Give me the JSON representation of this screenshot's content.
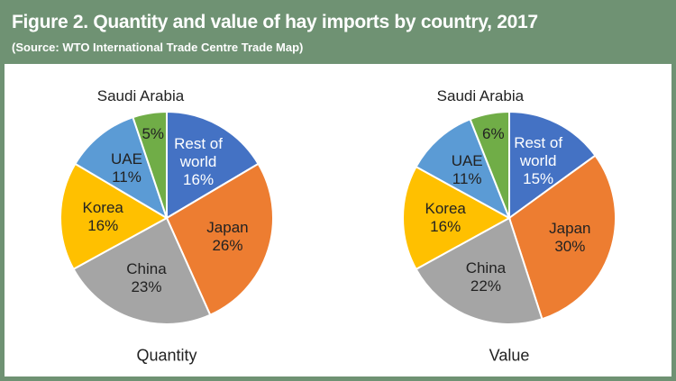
{
  "title": "Figure 2. Quantity and value of hay imports by country, 2017",
  "subtitle": "(Source: WTO International Trade Centre Trade Map)",
  "chart_data": [
    {
      "type": "pie",
      "label": "Quantity",
      "categories": [
        "Rest of world",
        "Japan",
        "China",
        "Korea",
        "UAE",
        "Saudi Arabia"
      ],
      "values": [
        16,
        26,
        23,
        16,
        11,
        5
      ],
      "value_labels": [
        "16%",
        "26%",
        "23%",
        "16%",
        "11%",
        "5%"
      ],
      "colors": [
        "#4472c4",
        "#ed7d31",
        "#a5a5a5",
        "#ffc000",
        "#5b9bd5",
        "#70ad47"
      ]
    },
    {
      "type": "pie",
      "label": "Value",
      "categories": [
        "Rest of world",
        "Japan",
        "China",
        "Korea",
        "UAE",
        "Saudi Arabia"
      ],
      "values": [
        15,
        30,
        22,
        16,
        11,
        6
      ],
      "value_labels": [
        "15%",
        "30%",
        "22%",
        "16%",
        "11%",
        "6%"
      ],
      "colors": [
        "#4472c4",
        "#ed7d31",
        "#a5a5a5",
        "#ffc000",
        "#5b9bd5",
        "#70ad47"
      ]
    }
  ]
}
